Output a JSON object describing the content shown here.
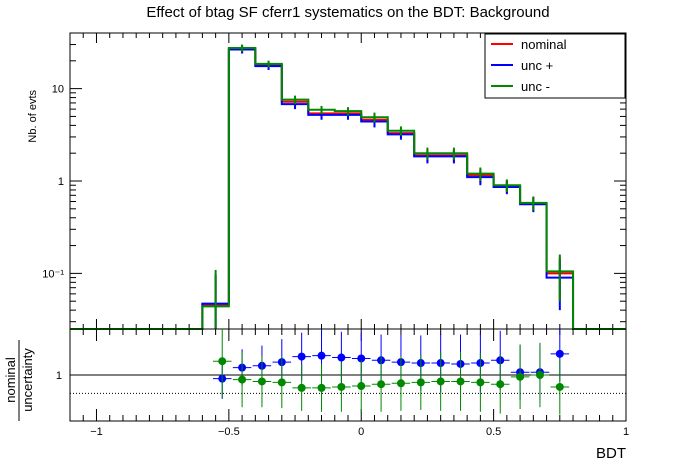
{
  "chart_data": [
    {
      "type": "line",
      "title": "Effect of btag SF cferr1 systematics on the BDT: Background",
      "ylabel": "Nb. of evts",
      "xlabel": "",
      "yscale": "log",
      "ylim": [
        0.025,
        40
      ],
      "xlim": [
        -1.1,
        1.0
      ],
      "bin_edges": [
        -1.1,
        -1.0,
        -0.9,
        -0.8,
        -0.7,
        -0.6,
        -0.5,
        -0.4,
        -0.3,
        -0.2,
        -0.1,
        0.0,
        0.1,
        0.2,
        0.3,
        0.4,
        0.5,
        0.6,
        0.7,
        0.8,
        0.9,
        1.0
      ],
      "y_ticks": [
        {
          "value": 0.1,
          "label": "10⁻¹"
        },
        {
          "value": 1,
          "label": "1"
        },
        {
          "value": 10,
          "label": "10"
        }
      ],
      "legend": {
        "position": "top-right"
      },
      "series": [
        {
          "name": "nominal",
          "color": "#ff0000",
          "values": [
            0,
            0,
            0,
            0,
            0,
            0.046,
            26.5,
            18.0,
            7.2,
            5.4,
            5.4,
            4.6,
            3.3,
            1.9,
            1.9,
            1.15,
            0.88,
            0.57,
            0.1,
            0,
            0
          ],
          "errors": [
            0,
            0,
            0,
            0,
            0,
            0.05,
            2.5,
            1.6,
            0.8,
            0.6,
            0.6,
            0.6,
            0.4,
            0.3,
            0.3,
            0.2,
            0.14,
            0.1,
            0.05,
            0,
            0
          ]
        },
        {
          "name": "unc +",
          "color": "#0000ff",
          "values": [
            0,
            0,
            0,
            0,
            0,
            0.047,
            26.5,
            17.5,
            6.8,
            5.2,
            5.2,
            4.4,
            3.2,
            1.85,
            1.85,
            1.1,
            0.86,
            0.56,
            0.09,
            0,
            0
          ],
          "errors": [
            0,
            0,
            0,
            0,
            0,
            0.05,
            2.5,
            1.6,
            0.8,
            0.6,
            0.6,
            0.6,
            0.4,
            0.3,
            0.3,
            0.2,
            0.14,
            0.1,
            0.05,
            0,
            0
          ]
        },
        {
          "name": "unc -",
          "color": "#008800",
          "values": [
            0,
            0,
            0,
            0,
            0,
            0.044,
            27.5,
            18.5,
            7.6,
            5.9,
            5.7,
            4.9,
            3.5,
            2.0,
            2.0,
            1.2,
            0.9,
            0.58,
            0.105,
            0,
            0
          ],
          "errors": [
            0,
            0,
            0,
            0,
            0,
            0.065,
            2.5,
            1.6,
            0.8,
            0.6,
            0.6,
            0.6,
            0.4,
            0.3,
            0.3,
            0.2,
            0.14,
            0.1,
            0.055,
            0,
            0
          ]
        }
      ]
    },
    {
      "type": "scatter",
      "ylabel": [
        "nominal",
        "uncertainty"
      ],
      "xlabel": "BDT",
      "xlim": [
        -1.1,
        1.0
      ],
      "ylim": [
        0.5,
        1.5
      ],
      "x_ticks": [
        {
          "value": -1,
          "label": "−1"
        },
        {
          "value": -0.5,
          "label": "−0.5"
        },
        {
          "value": 0,
          "label": "0"
        },
        {
          "value": 0.5,
          "label": "0.5"
        },
        {
          "value": 1,
          "label": "1"
        }
      ],
      "y_ticks": [
        {
          "value": 1,
          "label": "1"
        }
      ],
      "reference_lines": [
        {
          "y": 1.0,
          "style": "solid"
        },
        {
          "y": 0.8,
          "style": "dotted"
        }
      ],
      "x": [
        -0.525,
        -0.45,
        -0.375,
        -0.3,
        -0.225,
        -0.15,
        -0.075,
        0.0,
        0.075,
        0.15,
        0.225,
        0.3,
        0.375,
        0.45,
        0.525,
        0.6,
        0.675,
        0.75,
        0.825
      ],
      "x_half_width": 0.035,
      "series": [
        {
          "color": "#0000ff",
          "values": [
            0.96,
            1.08,
            1.1,
            1.14,
            1.2,
            1.21,
            1.19,
            1.18,
            1.16,
            1.14,
            1.13,
            1.13,
            1.12,
            1.13,
            1.16,
            1.03,
            1.03,
            1.23,
            null
          ],
          "errors": [
            0.22,
            0.2,
            0.22,
            0.25,
            0.26,
            0.28,
            0.28,
            0.28,
            0.28,
            0.3,
            0.3,
            0.32,
            0.32,
            0.32,
            0.32,
            0.3,
            0.3,
            0.3,
            0
          ]
        },
        {
          "color": "#008800",
          "values": [
            1.15,
            0.95,
            0.93,
            0.92,
            0.86,
            0.86,
            0.87,
            0.88,
            0.9,
            0.91,
            0.92,
            0.93,
            0.93,
            0.92,
            0.9,
            0.98,
            1.0,
            0.87,
            null
          ],
          "errors": [
            0.4,
            0.3,
            0.28,
            0.28,
            0.25,
            0.26,
            0.27,
            0.28,
            0.3,
            0.3,
            0.3,
            0.32,
            0.32,
            0.32,
            0.32,
            0.35,
            0.35,
            0.3,
            0
          ]
        }
      ]
    }
  ]
}
